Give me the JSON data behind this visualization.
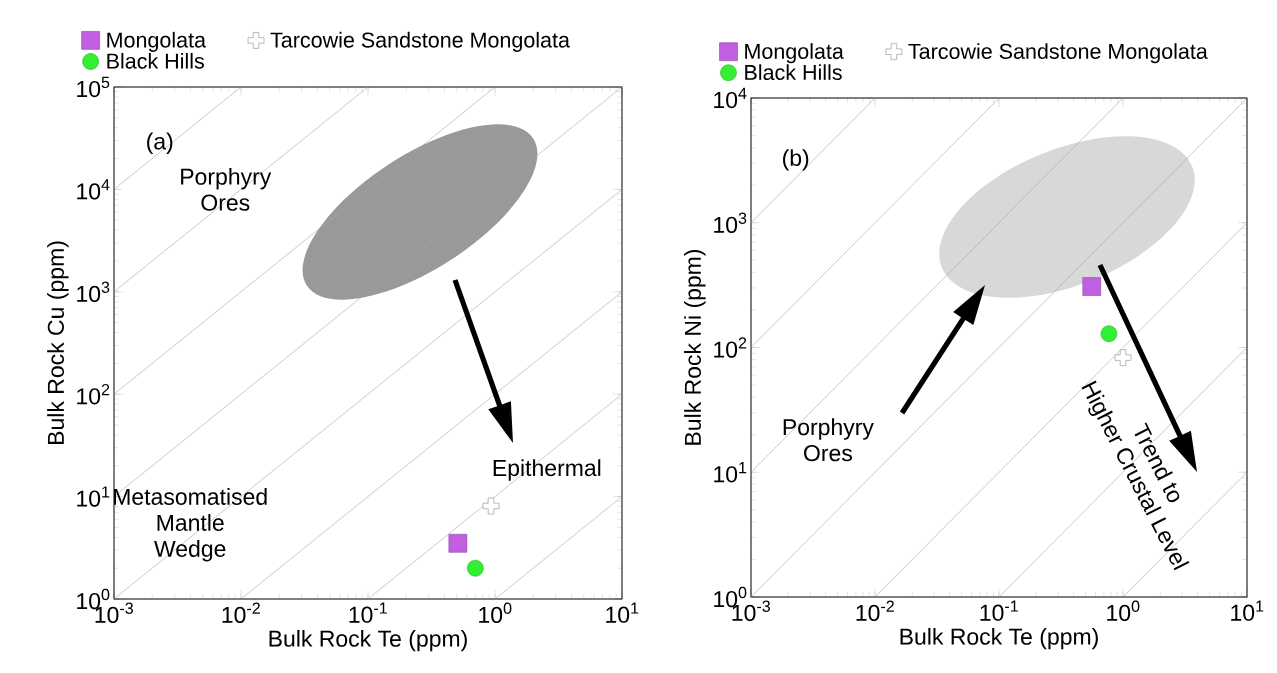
{
  "chart_data": [
    {
      "type": "scatter",
      "xlabel": "Bulk Rock Te (ppm)",
      "ylabel": "Bulk Rock Cu (ppm)",
      "log": "xy",
      "legend": "top left",
      "xlim": [
        0.001,
        10
      ],
      "ylim": [
        1,
        100000
      ],
      "xticks": [
        {
          "value": 0.001,
          "label": "10$^{-3}$"
        },
        {
          "value": 0.01,
          "label": "10$^{-2}$"
        },
        {
          "value": 0.1,
          "label": "10$^{-1}$"
        },
        {
          "value": 1,
          "label": "10$^{0}$"
        },
        {
          "value": 10,
          "label": "10$^{1}$"
        }
      ],
      "yticks": [
        {
          "value": 1,
          "label": "10$^{0}$"
        },
        {
          "value": 10,
          "label": "10$^{1}$"
        },
        {
          "value": 100,
          "label": "10$^{2}$"
        },
        {
          "value": 1000,
          "label": "10$^{3}$"
        },
        {
          "value": 10000,
          "label": "10$^{4}$"
        },
        {
          "value": 100000,
          "label": "10$^{5}$"
        }
      ],
      "series": [
        {
          "name": "Mongolata",
          "color": "#c060e0",
          "marker": "square",
          "x": [
            0.51
          ],
          "values": [
            3.5
          ]
        },
        {
          "name": "Black Hills",
          "color": "#33ee33",
          "marker": "circle",
          "x": [
            0.7
          ],
          "values": [
            2.0
          ]
        },
        {
          "name": "Tarcowie Sandstone Mongolata",
          "color": "#ffffff",
          "marker": "cross",
          "x": [
            0.93
          ],
          "values": [
            8.1
          ]
        },
        {
          "type": "line",
          "color": "#a6a6a6",
          "x": [
            0.001,
            0.01
          ],
          "values": [
            10000,
            100000
          ]
        },
        {
          "type": "line",
          "color": "#a6a6a6",
          "x": [
            0.001,
            0.1
          ],
          "values": [
            1000,
            100000
          ]
        },
        {
          "type": "line",
          "color": "#a6a6a6",
          "x": [
            0.001,
            1
          ],
          "values": [
            100,
            100000
          ]
        },
        {
          "type": "line",
          "color": "#a6a6a6",
          "x": [
            0.001,
            10
          ],
          "values": [
            10,
            100000
          ]
        },
        {
          "type": "line",
          "color": "#a6a6a6",
          "x": [
            0.001,
            10
          ],
          "values": [
            1,
            10000
          ]
        },
        {
          "type": "line",
          "color": "#a6a6a6",
          "x": [
            0.01,
            10
          ],
          "values": [
            1,
            1000
          ]
        },
        {
          "type": "line",
          "color": "#a6a6a6",
          "x": [
            0.1,
            10
          ],
          "values": [
            1,
            100
          ]
        },
        {
          "type": "line",
          "color": "#a6a6a6",
          "x": [
            1,
            10
          ],
          "values": [
            1,
            10
          ]
        }
      ],
      "annotations": [
        "(a)",
        "Porphyry Ores",
        "Epithermal",
        "Metasomatised Mantle Wedge"
      ]
    },
    {
      "type": "scatter",
      "xlabel": "Bulk Rock Te (ppm)",
      "ylabel": "Bulk Rock Ni (ppm)",
      "log": "xy",
      "legend": "top left",
      "xlim": [
        0.001,
        10
      ],
      "ylim": [
        1,
        10000
      ],
      "xticks": [
        {
          "value": 0.001,
          "label": "10$^{-3}$"
        },
        {
          "value": 0.01,
          "label": "10$^{-2}$"
        },
        {
          "value": 0.1,
          "label": "10$^{-1}$"
        },
        {
          "value": 1,
          "label": "10$^{0}$"
        },
        {
          "value": 10,
          "label": "10$^{1}$"
        }
      ],
      "yticks": [
        {
          "value": 1,
          "label": "10$^{0}$"
        },
        {
          "value": 10,
          "label": "10$^{1}$"
        },
        {
          "value": 100,
          "label": "10$^{2}$"
        },
        {
          "value": 1000,
          "label": "10$^{3}$"
        },
        {
          "value": 10000,
          "label": "10$^{4}$"
        }
      ],
      "series": [
        {
          "name": "Mongolata",
          "color": "#c060e0",
          "marker": "square",
          "x": [
            0.56
          ],
          "values": [
            308
          ]
        },
        {
          "name": "Black Hills",
          "color": "#33ee33",
          "marker": "circle",
          "x": [
            0.77
          ],
          "values": [
            129
          ]
        },
        {
          "name": "Tarcowie Sandstone Mongolata",
          "color": "#ffffff",
          "marker": "cross",
          "x": [
            1.0
          ],
          "values": [
            83
          ]
        },
        {
          "type": "line",
          "color": "#a6a6a6",
          "x": [
            0.001,
            0.01
          ],
          "values": [
            1000,
            10000
          ]
        },
        {
          "type": "line",
          "color": "#a6a6a6",
          "x": [
            0.001,
            0.1
          ],
          "values": [
            100,
            10000
          ]
        },
        {
          "type": "line",
          "color": "#a6a6a6",
          "x": [
            0.001,
            1
          ],
          "values": [
            10,
            10000
          ]
        },
        {
          "type": "line",
          "color": "#a6a6a6",
          "x": [
            0.001,
            10
          ],
          "values": [
            1,
            10000
          ]
        },
        {
          "type": "line",
          "color": "#a6a6a6",
          "x": [
            0.01,
            10
          ],
          "values": [
            1,
            1000
          ]
        },
        {
          "type": "line",
          "color": "#a6a6a6",
          "x": [
            0.1,
            10
          ],
          "values": [
            1,
            100
          ]
        },
        {
          "type": "line",
          "color": "#a6a6a6",
          "x": [
            1,
            10
          ],
          "values": [
            1,
            10
          ]
        }
      ],
      "annotations": [
        "(b)",
        "Porphyry Ores",
        "Trend to Higher Crustal Level"
      ]
    }
  ]
}
